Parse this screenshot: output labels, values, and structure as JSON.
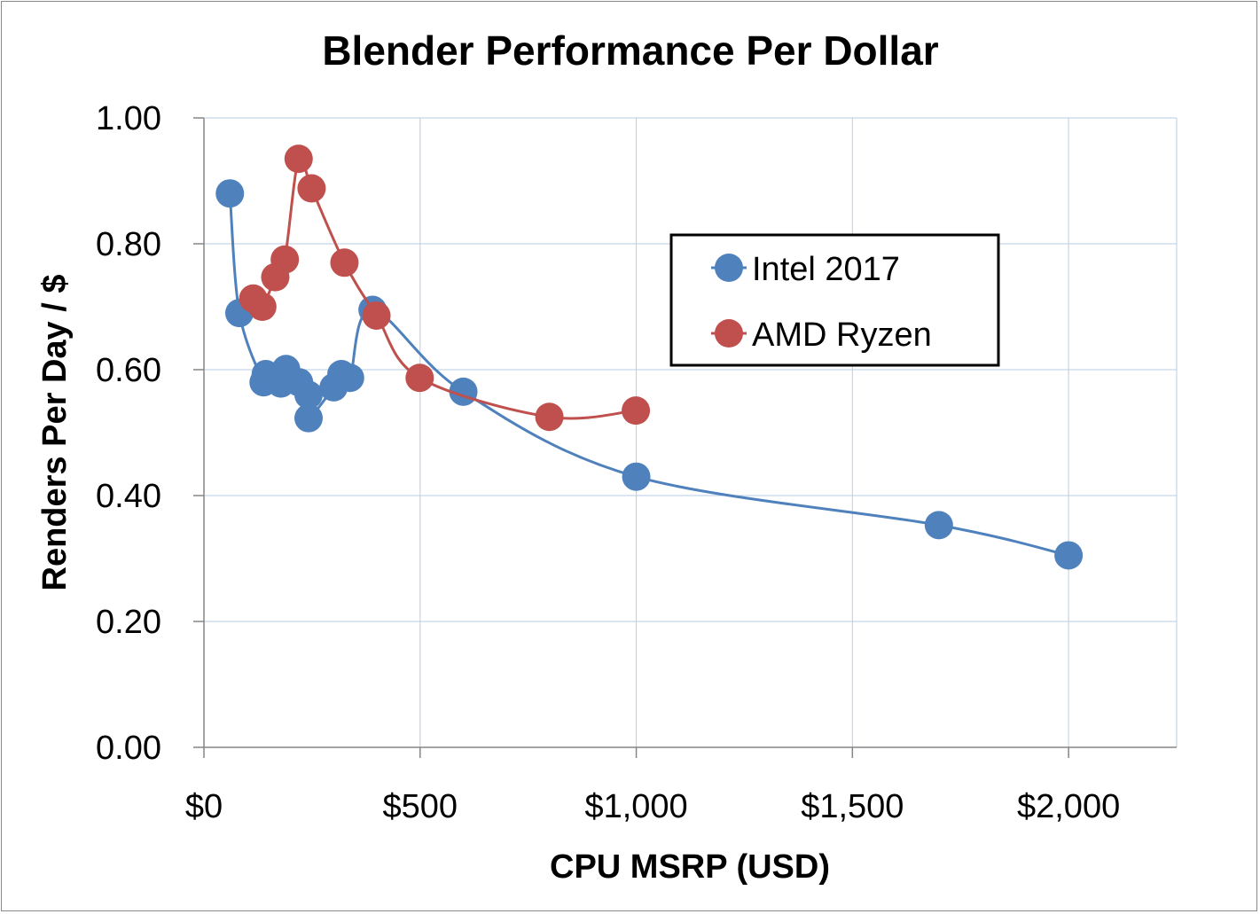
{
  "chart_data": {
    "type": "scatter",
    "title": "Blender Performance Per Dollar",
    "xlabel": "CPU MSRP (USD)",
    "ylabel": "Renders Per Day / $",
    "xlim": [
      0,
      2250
    ],
    "ylim": [
      0,
      1.0
    ],
    "x_ticks": [
      0,
      500,
      1000,
      1500,
      2000
    ],
    "x_tick_labels": [
      "$0",
      "$500",
      "$1,000",
      "$1,500",
      "$2,000"
    ],
    "y_ticks": [
      0,
      0.2,
      0.4,
      0.6,
      0.8,
      1.0
    ],
    "y_tick_labels": [
      "0.00",
      "0.20",
      "0.40",
      "0.60",
      "0.80",
      "1.00"
    ],
    "grid": true,
    "legend_position": "right",
    "smoothed_lines": true,
    "series": [
      {
        "name": "Intel 2017",
        "color": "#4f81bd",
        "points": [
          [
            60,
            0.88
          ],
          [
            82,
            0.69
          ],
          [
            138,
            0.58
          ],
          [
            143,
            0.593
          ],
          [
            178,
            0.578
          ],
          [
            190,
            0.601
          ],
          [
            220,
            0.58
          ],
          [
            242,
            0.56
          ],
          [
            242,
            0.523
          ],
          [
            300,
            0.572
          ],
          [
            318,
            0.593
          ],
          [
            338,
            0.587
          ],
          [
            390,
            0.695
          ],
          [
            600,
            0.565
          ],
          [
            1000,
            0.43
          ],
          [
            1700,
            0.353
          ],
          [
            2000,
            0.305
          ]
        ]
      },
      {
        "name": "AMD Ryzen",
        "color": "#c0504d",
        "points": [
          [
            114,
            0.713
          ],
          [
            135,
            0.7
          ],
          [
            165,
            0.747
          ],
          [
            187,
            0.775
          ],
          [
            219,
            0.935
          ],
          [
            249,
            0.888
          ],
          [
            325,
            0.77
          ],
          [
            399,
            0.686
          ],
          [
            499,
            0.587
          ],
          [
            799,
            0.525
          ],
          [
            999,
            0.535
          ]
        ]
      }
    ]
  }
}
